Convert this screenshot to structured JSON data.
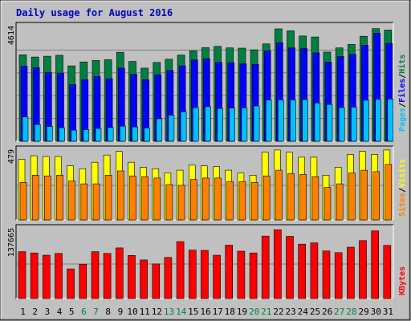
{
  "title": "Daily usage for August 2016",
  "colors": {
    "background": "#c0c0c0",
    "plot_bg": "#c0c0c0",
    "title": "#0000c0",
    "hits": "#008040",
    "files": "#0000ff",
    "pages": "#00c0ff",
    "visits": "#ffff00",
    "sites": "#ff8000",
    "kbytes": "#ff0000",
    "weekend_label": "#008040"
  },
  "chart_data": {
    "type": "bar",
    "title": "Daily usage for August 2016",
    "categories": [
      "1",
      "2",
      "3",
      "4",
      "5",
      "6",
      "7",
      "8",
      "9",
      "10",
      "11",
      "12",
      "13",
      "14",
      "15",
      "16",
      "17",
      "18",
      "19",
      "20",
      "21",
      "22",
      "23",
      "24",
      "25",
      "26",
      "27",
      "28",
      "29",
      "30",
      "31"
    ],
    "weekend_days": [
      "6",
      "7",
      "13",
      "14",
      "20",
      "21",
      "27",
      "28"
    ],
    "panels": [
      {
        "name": "hits-files-pages",
        "ymax_label": "4614",
        "ymax": 4614,
        "legend": [
          {
            "label": "Hits",
            "color": "#008040"
          },
          {
            "label": "/",
            "color": "#000000"
          },
          {
            "label": "Files",
            "color": "#0000ff"
          },
          {
            "label": "/",
            "color": "#000000"
          },
          {
            "label": "Pages",
            "color": "#00c0ff"
          }
        ],
        "series": [
          {
            "name": "Hits",
            "color": "#008040",
            "values": [
              3500,
              3410,
              3440,
              3480,
              3050,
              3210,
              3270,
              3300,
              3600,
              3230,
              2960,
              3190,
              3320,
              3490,
              3660,
              3790,
              3840,
              3780,
              3770,
              3700,
              3940,
              4550,
              4470,
              4260,
              4220,
              3610,
              3780,
              3920,
              4250,
              4560,
              4500
            ]
          },
          {
            "name": "Files",
            "color": "#0000ff",
            "values": [
              3040,
              2980,
              2780,
              2760,
              2290,
              2490,
              2620,
              2530,
              2960,
              2710,
              2490,
              2690,
              2870,
              3050,
              3290,
              3340,
              3190,
              3180,
              3140,
              3110,
              3660,
              3990,
              3780,
              3750,
              3580,
              3200,
              3430,
              3520,
              3890,
              4370,
              3960
            ]
          },
          {
            "name": "Pages",
            "color": "#00c0ff",
            "values": [
              980,
              680,
              600,
              550,
              450,
              470,
              520,
              560,
              610,
              580,
              540,
              910,
              1060,
              1200,
              1360,
              1400,
              1330,
              1350,
              1350,
              1430,
              1670,
              1680,
              1680,
              1690,
              1550,
              1490,
              1360,
              1380,
              1660,
              1700,
              1710
            ]
          }
        ]
      },
      {
        "name": "visits-sites",
        "ymax_label": "479",
        "ymax": 479,
        "legend": [
          {
            "label": "Visits",
            "color": "#ffff00"
          },
          {
            "label": "/",
            "color": "#000000"
          },
          {
            "label": "Sites",
            "color": "#ff8000"
          }
        ],
        "series": [
          {
            "name": "Visits",
            "color": "#ffff00",
            "values": [
              420,
              445,
              440,
              440,
              375,
              355,
              400,
              450,
              475,
              400,
              365,
              355,
              325,
              345,
              380,
              375,
              370,
              345,
              325,
              310,
              470,
              485,
              470,
              435,
              435,
              310,
              365,
              455,
              475,
              455,
              485
            ]
          },
          {
            "name": "Sites",
            "color": "#ff8000",
            "values": [
              260,
              310,
              305,
              310,
              270,
              250,
              250,
              310,
              340,
              305,
              300,
              290,
              245,
              240,
              280,
              290,
              290,
              265,
              265,
              260,
              305,
              345,
              320,
              315,
              300,
              225,
              250,
              325,
              345,
              335,
              385
            ]
          }
        ]
      },
      {
        "name": "kbytes",
        "ymax_label": "137665",
        "ymax": 137665,
        "legend": [
          {
            "label": "KBytes",
            "color": "#ff0000"
          }
        ],
        "series": [
          {
            "name": "KBytes",
            "color": "#ff0000",
            "values": [
              93500,
              91000,
              86500,
              90000,
              59000,
              68500,
              93500,
              90000,
              101000,
              86000,
              77000,
              69000,
              82000,
              113500,
              96500,
              96000,
              86500,
              106500,
              94500,
              91000,
              124500,
              137000,
              124000,
              108500,
              111000,
              95000,
              91500,
              102500,
              115500,
              135000,
              106000
            ]
          }
        ]
      }
    ]
  }
}
